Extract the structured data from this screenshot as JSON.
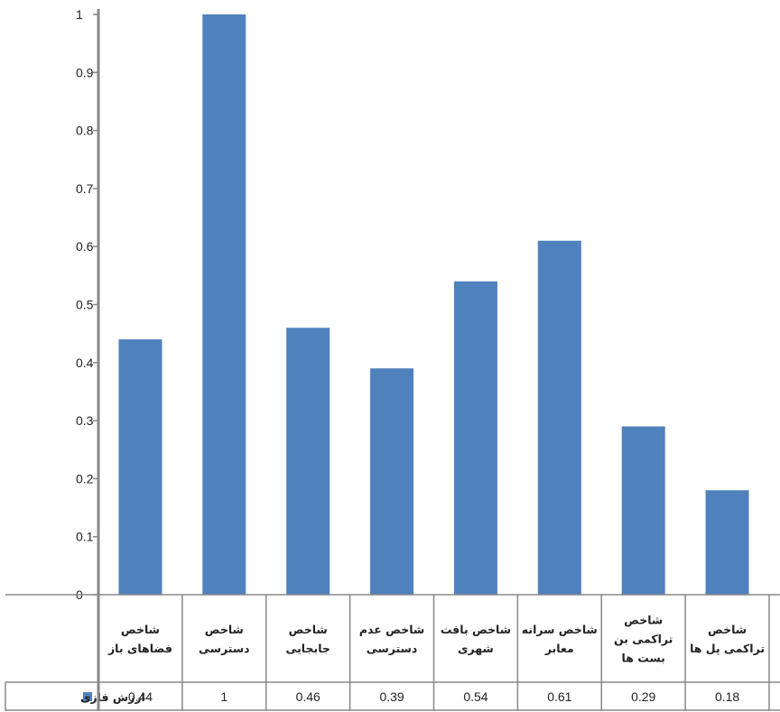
{
  "chart_data": {
    "type": "bar",
    "categories": [
      "شاخص فضاهای باز",
      "شاخص دسترسی",
      "شاخص جابجایی",
      "شاخص عدم دسترسی",
      "شاخص بافت شهری",
      "شاخص سرانه معابر",
      "شاخص تراکمی بن بست ها",
      "شاخص تراکمی پل ها"
    ],
    "category_lines": [
      [
        "شاخص",
        "فضاهای باز"
      ],
      [
        "شاخص",
        "دسترسی"
      ],
      [
        "شاخص",
        "جابجایی"
      ],
      [
        "شاخص عدم",
        "دسترسی"
      ],
      [
        "شاخص بافت",
        "شهری"
      ],
      [
        "شاخص سرانه",
        "معابر"
      ],
      [
        "شاخص",
        "تراکمی بن",
        "بست ها"
      ],
      [
        "شاخص",
        "تراکمی پل ها"
      ]
    ],
    "series": [
      {
        "name": "ارزش فازی",
        "values": [
          0.44,
          1,
          0.46,
          0.39,
          0.54,
          0.61,
          0.29,
          0.18
        ],
        "value_labels": [
          "0.44",
          "1",
          "0.46",
          "0.39",
          "0.54",
          "0.61",
          "0.29",
          "0.18"
        ]
      }
    ],
    "yticks": [
      "0",
      "0.1",
      "0.2",
      "0.3",
      "0.4",
      "0.5",
      "0.6",
      "0.7",
      "0.8",
      "0.9",
      "1"
    ],
    "ylim": [
      0,
      1
    ],
    "grid": false,
    "legend": "in-data-table-left",
    "colors": {
      "bar": "#4f81bd",
      "axis": "#888888"
    }
  }
}
